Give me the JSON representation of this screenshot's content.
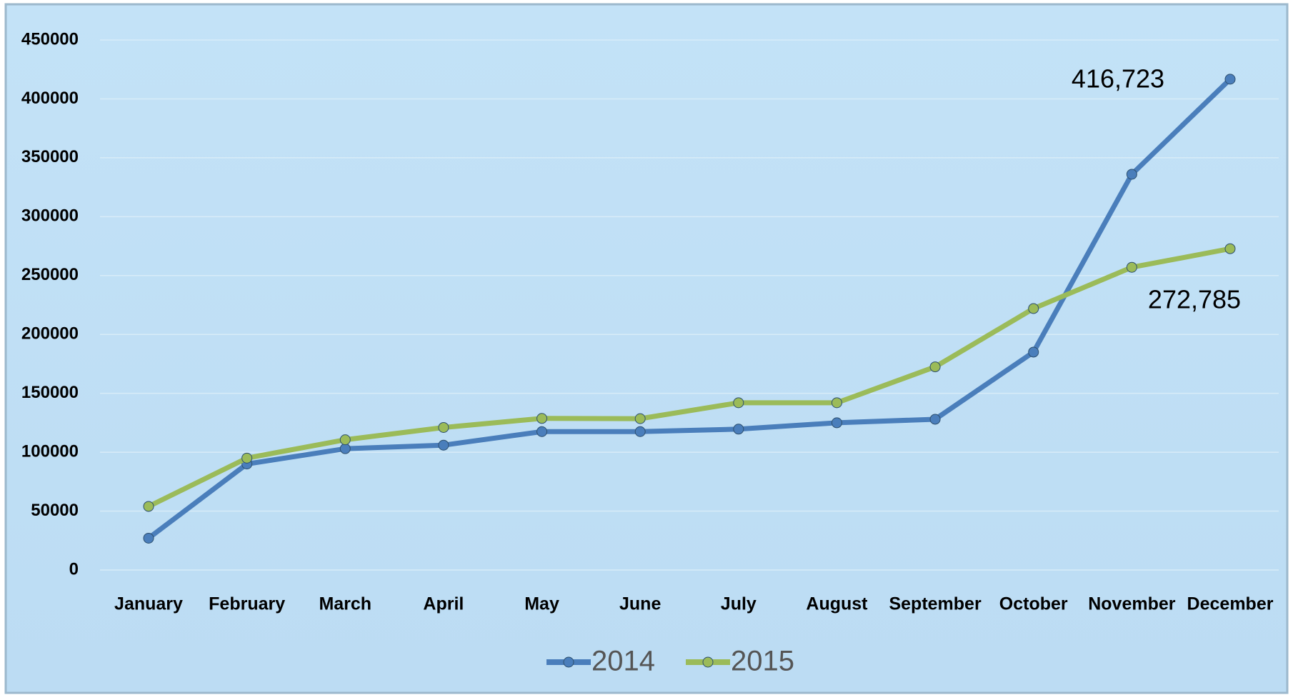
{
  "chart_data": {
    "type": "line",
    "categories": [
      "January",
      "February",
      "March",
      "April",
      "May",
      "June",
      "July",
      "August",
      "September",
      "October",
      "November",
      "December"
    ],
    "series": [
      {
        "name": "2014",
        "color": "#4a7ebb",
        "values": [
          27000,
          90000,
          103000,
          106000,
          117500,
          117500,
          119600,
          125000,
          128000,
          185000,
          336000,
          416723
        ],
        "value_labels": [
          null,
          null,
          null,
          null,
          null,
          null,
          null,
          null,
          null,
          null,
          null,
          "416,723"
        ]
      },
      {
        "name": "2015",
        "color": "#9bbb59",
        "values": [
          54000,
          95000,
          110600,
          121000,
          128700,
          128500,
          142000,
          142000,
          172500,
          222000,
          257000,
          272785
        ],
        "value_labels": [
          null,
          null,
          null,
          null,
          null,
          null,
          null,
          null,
          null,
          null,
          null,
          "272,785"
        ]
      }
    ],
    "ylim": [
      0,
      450000
    ],
    "yticks": [
      0,
      50000,
      100000,
      150000,
      200000,
      250000,
      300000,
      350000,
      400000,
      450000
    ],
    "grid": true
  }
}
